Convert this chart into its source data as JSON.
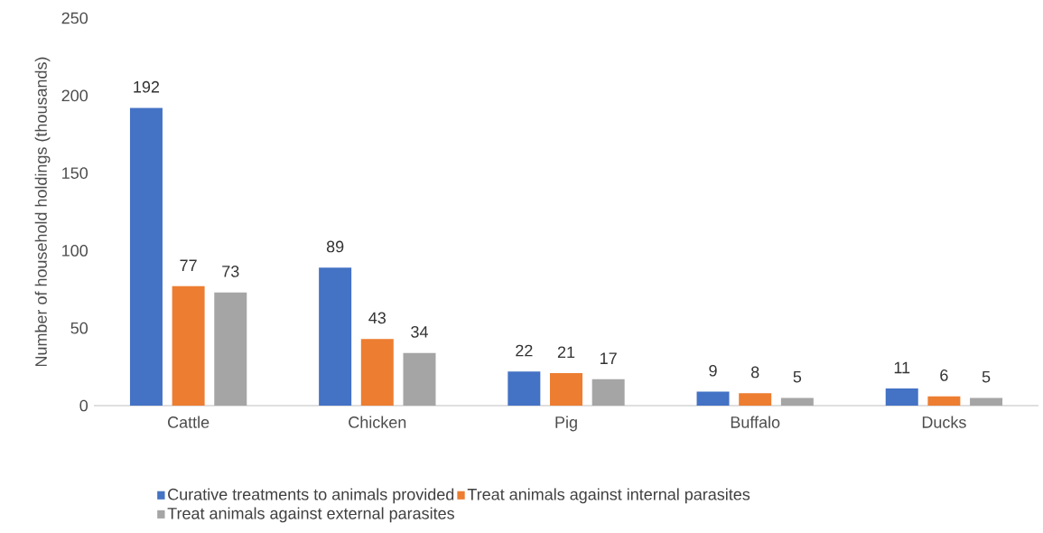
{
  "chart_data": {
    "type": "bar",
    "ylabel": "Number of household holdings (thousands)",
    "categories": [
      "Cattle",
      "Chicken",
      "Pig",
      "Buffalo",
      "Ducks"
    ],
    "series": [
      {
        "name": "Curative treatments to animals provided",
        "color": "#4472c4",
        "values": [
          192,
          89,
          22,
          9,
          11
        ]
      },
      {
        "name": "Treat animals against internal parasites",
        "color": "#ed7d31",
        "values": [
          77,
          43,
          21,
          8,
          6
        ]
      },
      {
        "name": "Treat animals against external parasites",
        "color": "#a5a5a5",
        "values": [
          73,
          34,
          17,
          5,
          5
        ]
      }
    ],
    "ylim": [
      0,
      250
    ],
    "yticks": [
      0,
      50,
      100,
      150,
      200,
      250
    ],
    "data_labels": true,
    "grid": false,
    "legend": "bottom"
  }
}
